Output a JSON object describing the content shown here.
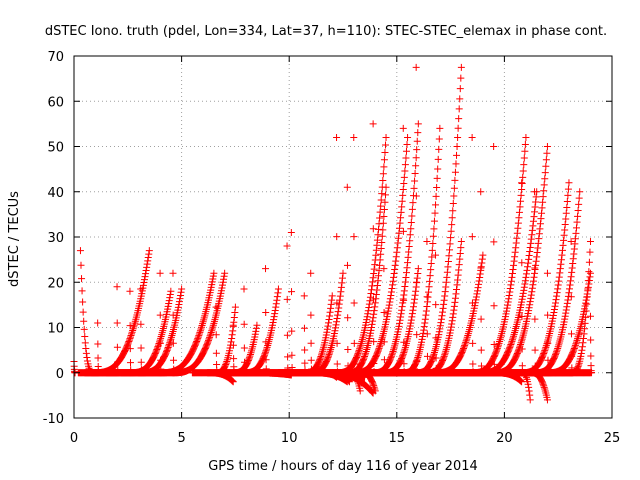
{
  "chart_data": {
    "type": "scatter",
    "title": "dSTEC Iono. truth (pdel, Lon=334, Lat=37, h=110): STEC-STEC_elemax in phase cont.",
    "xlabel": "GPS time / hours of day 116 of year 2014",
    "ylabel": "dSTEC  / TECUs",
    "xlim": [
      0,
      25
    ],
    "ylim": [
      -10,
      70
    ],
    "xticks": [
      "0",
      "5",
      "10",
      "15",
      "20",
      "25"
    ],
    "yticks": [
      "-10",
      "0",
      "10",
      "20",
      "30",
      "40",
      "50",
      "60",
      "70"
    ],
    "grid": true,
    "legend": "none",
    "marker": "+",
    "color": "#ff0000",
    "series": [
      {
        "arcs": [
          [
            0.0,
            2.5,
            0.0
          ],
          [
            0.9,
            27.0,
            0.3
          ],
          [
            0.9,
            27.0,
            3.5
          ]
        ]
      },
      {
        "arcs": [
          [
            0.2,
            0.0,
            1.1
          ],
          [
            1.1,
            11.0,
            1.1
          ]
        ]
      },
      {
        "arcs": [
          [
            0.5,
            0.0,
            2.0
          ],
          [
            2.0,
            19.0,
            2.0
          ]
        ]
      },
      {
        "arcs": [
          [
            0.8,
            0.0,
            2.6
          ],
          [
            2.6,
            18.0,
            2.6
          ],
          [
            2.6,
            18.0,
            4.5
          ]
        ]
      },
      {
        "arcs": [
          [
            2.2,
            0.0,
            3.1
          ],
          [
            3.1,
            18.5,
            3.1
          ],
          [
            3.1,
            18.5,
            5.0
          ]
        ]
      },
      {
        "arcs": [
          [
            1.5,
            0.0,
            4.0
          ],
          [
            4.0,
            22.0,
            4.0
          ],
          [
            4.0,
            22.0,
            6.5
          ]
        ]
      },
      {
        "arcs": [
          [
            3.0,
            0.0,
            4.6
          ],
          [
            4.6,
            22.0,
            4.6
          ],
          [
            4.6,
            22.0,
            7.0
          ]
        ]
      },
      {
        "arcs": [
          [
            5.5,
            0.0,
            6.6
          ],
          [
            6.6,
            14.5,
            6.6
          ],
          [
            6.6,
            14.5,
            7.5
          ]
        ]
      },
      {
        "arcs": [
          [
            6.2,
            -2.0,
            7.4
          ],
          [
            7.4,
            10.5,
            7.4
          ],
          [
            7.4,
            10.5,
            8.5
          ]
        ]
      },
      {
        "arcs": [
          [
            6.5,
            0.0,
            7.9
          ],
          [
            7.9,
            18.5,
            7.9
          ],
          [
            7.9,
            18.5,
            9.5
          ]
        ]
      },
      {
        "arcs": [
          [
            7.0,
            0.0,
            8.9
          ],
          [
            8.9,
            23.0,
            8.9
          ]
        ]
      },
      {
        "arcs": [
          [
            7.5,
            0.0,
            9.9
          ],
          [
            9.9,
            28.0,
            9.9
          ]
        ]
      },
      {
        "arcs": [
          [
            8.0,
            -0.5,
            10.1
          ],
          [
            10.1,
            31.0,
            10.1
          ]
        ]
      },
      {
        "arcs": [
          [
            9.0,
            0.0,
            10.7
          ],
          [
            10.7,
            17.0,
            10.7
          ],
          [
            10.7,
            17.0,
            12.0
          ]
        ]
      },
      {
        "arcs": [
          [
            9.5,
            0.0,
            11.0
          ],
          [
            11.0,
            22.0,
            11.0
          ],
          [
            11.0,
            22.0,
            12.5
          ]
        ]
      },
      {
        "arcs": [
          [
            9.5,
            0.0,
            12.2
          ],
          [
            12.2,
            52.0,
            12.2
          ],
          [
            12.2,
            52.0,
            14.5
          ]
        ]
      },
      {
        "arcs": [
          [
            11.0,
            -2.0,
            12.7
          ],
          [
            12.7,
            41.0,
            12.7
          ],
          [
            12.7,
            41.0,
            14.5
          ]
        ]
      },
      {
        "arcs": [
          [
            10.5,
            0.0,
            13.0
          ],
          [
            13.0,
            52.0,
            13.0
          ],
          [
            13.0,
            52.0,
            15.5
          ]
        ]
      },
      {
        "arcs": [
          [
            11.5,
            -4.5,
            13.9
          ],
          [
            13.9,
            55.0,
            13.9
          ],
          [
            13.9,
            55.0,
            16.0
          ]
        ]
      },
      {
        "arcs": [
          [
            12.5,
            0.0,
            14.4
          ],
          [
            14.4,
            23.0,
            14.4
          ],
          [
            14.4,
            23.0,
            16.0
          ]
        ]
      },
      {
        "arcs": [
          [
            12.0,
            0.0,
            15.3
          ],
          [
            15.3,
            54.0,
            15.3
          ],
          [
            15.3,
            54.0,
            17.0
          ]
        ]
      },
      {
        "arcs": [
          [
            13.5,
            0.0,
            15.9
          ],
          [
            15.9,
            67.5,
            15.9
          ],
          [
            15.9,
            67.5,
            18.0
          ]
        ]
      },
      {
        "arcs": [
          [
            14.0,
            0.0,
            16.4
          ],
          [
            16.4,
            29.0,
            16.4
          ],
          [
            16.4,
            29.0,
            18.0
          ]
        ]
      },
      {
        "arcs": [
          [
            14.5,
            0.0,
            16.8
          ],
          [
            16.8,
            26.0,
            16.8
          ],
          [
            16.8,
            26.0,
            19.0
          ]
        ]
      },
      {
        "arcs": [
          [
            15.0,
            0.0,
            18.5
          ],
          [
            18.5,
            52.0,
            18.5
          ],
          [
            18.5,
            52.0,
            21.0
          ]
        ]
      },
      {
        "arcs": [
          [
            16.0,
            0.0,
            18.9
          ],
          [
            18.9,
            40.0,
            18.9
          ],
          [
            18.9,
            40.0,
            21.5
          ]
        ]
      },
      {
        "arcs": [
          [
            17.0,
            0.0,
            19.5
          ],
          [
            19.5,
            50.0,
            19.5
          ],
          [
            19.5,
            50.0,
            22.0
          ]
        ]
      },
      {
        "arcs": [
          [
            18.0,
            0.0,
            20.8
          ],
          [
            20.8,
            42.0,
            20.8
          ],
          [
            20.8,
            42.0,
            23.0
          ]
        ]
      },
      {
        "arcs": [
          [
            18.5,
            0.0,
            21.4
          ],
          [
            21.4,
            40.0,
            21.4
          ],
          [
            21.4,
            40.0,
            23.5
          ]
        ]
      },
      {
        "arcs": [
          [
            19.5,
            0.0,
            22.0
          ],
          [
            22.0,
            22.0,
            22.0
          ],
          [
            22.0,
            22.0,
            24.0
          ]
        ]
      },
      {
        "arcs": [
          [
            20.5,
            0.0,
            23.1
          ],
          [
            23.1,
            29.0,
            23.1
          ],
          [
            23.1,
            29.0,
            24.0
          ]
        ]
      },
      {
        "arcs": [
          [
            21.5,
            0.0,
            24.0
          ],
          [
            24.0,
            12.5,
            24.0
          ]
        ]
      },
      {
        "arcs": [
          [
            11.5,
            -1.0,
            12.2
          ],
          [
            12.2,
            -1.0,
            13.5
          ],
          [
            13.5,
            -1.0,
            13.5
          ]
        ]
      },
      {
        "arcs": [
          [
            12.0,
            -2.0,
            12.8
          ],
          [
            12.8,
            -4.0,
            13.3
          ],
          [
            13.3,
            -4.0,
            14.0
          ]
        ]
      },
      {
        "arcs": [
          [
            19.5,
            -2.0,
            20.8
          ],
          [
            20.8,
            -6.0,
            21.2
          ],
          [
            21.2,
            -6.0,
            22.0
          ]
        ]
      }
    ]
  }
}
